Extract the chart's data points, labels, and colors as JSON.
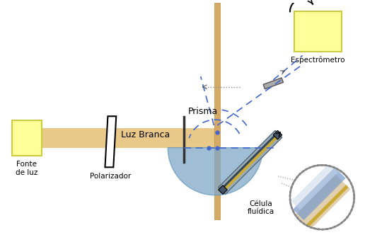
{
  "bg_color": "#ffffff",
  "beam_color": "#e8c98a",
  "prism_color": "#7fa8c8",
  "yellow_color": "#ffff99",
  "yellow_stroke": "#cccc44",
  "gold_color": "#ccaa33",
  "text_color": "#000000",
  "dashed_blue": "#4466cc",
  "dotted_gray": "#888888",
  "fonte_label": "Fonte\nde luz",
  "polarizador_label": "Polarizador",
  "luz_branca_label": "Luz Branca",
  "prisma_label": "Prisma",
  "celula_label": "Célula\nfluídica",
  "espectrometro_label": "Espectrômetro"
}
